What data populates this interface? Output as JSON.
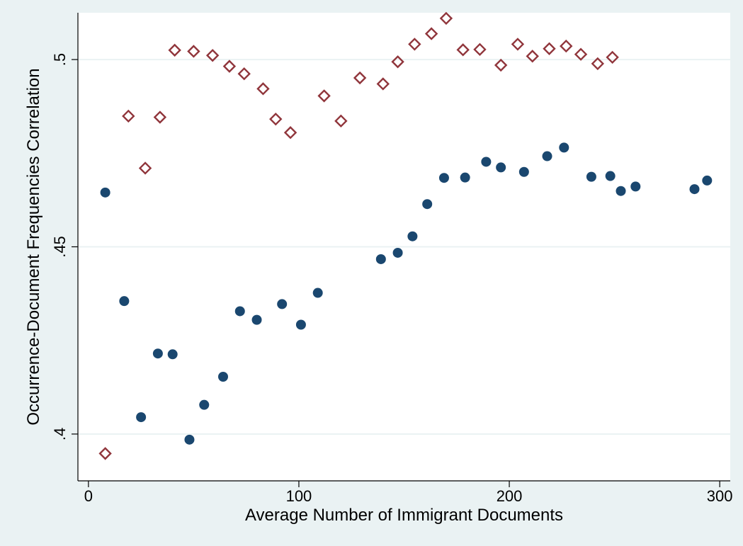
{
  "colors": {
    "outer_background": "#eaf2f3",
    "plot_background": "#ffffff",
    "gridline": "#eaf2f3",
    "series_circle": "#1a476f",
    "series_diamond": "#90353b"
  },
  "chart_data": {
    "type": "scatter",
    "title": "",
    "xlabel": "Average Number of Immigrant Documents",
    "ylabel": "Occurrence-Document Frequencies Correlation",
    "xlim": [
      -5,
      305
    ],
    "ylim": [
      0.3875,
      0.5125
    ],
    "x_ticks": [
      0,
      100,
      200,
      300
    ],
    "x_tick_labels": [
      "0",
      "100",
      "200",
      "300"
    ],
    "y_ticks": [
      0.4,
      0.45,
      0.5
    ],
    "y_tick_labels": [
      ".4",
      ".45",
      ".5"
    ],
    "grid": "horizontal",
    "legend": "none",
    "series": [
      {
        "marker": "filled-circle",
        "points": [
          [
            8,
            0.4645
          ],
          [
            17,
            0.4355
          ],
          [
            25,
            0.4045
          ],
          [
            33,
            0.4215
          ],
          [
            40,
            0.4213
          ],
          [
            48,
            0.3985
          ],
          [
            55,
            0.4078
          ],
          [
            64,
            0.4153
          ],
          [
            72,
            0.4328
          ],
          [
            80,
            0.4305
          ],
          [
            92,
            0.4347
          ],
          [
            101,
            0.4292
          ],
          [
            109,
            0.4377
          ],
          [
            139,
            0.4467
          ],
          [
            147,
            0.4484
          ],
          [
            154,
            0.4528
          ],
          [
            161,
            0.4614
          ],
          [
            169,
            0.4684
          ],
          [
            179,
            0.4685
          ],
          [
            189,
            0.4727
          ],
          [
            196,
            0.4712
          ],
          [
            207,
            0.47
          ],
          [
            218,
            0.4742
          ],
          [
            226,
            0.4765
          ],
          [
            239,
            0.4687
          ],
          [
            248,
            0.4689
          ],
          [
            253,
            0.4649
          ],
          [
            260,
            0.4661
          ],
          [
            288,
            0.4654
          ],
          [
            294,
            0.4677
          ]
        ]
      },
      {
        "marker": "hollow-diamond",
        "points": [
          [
            8,
            0.3948
          ],
          [
            19,
            0.4849
          ],
          [
            27,
            0.471
          ],
          [
            34,
            0.4846
          ],
          [
            41,
            0.5025
          ],
          [
            50,
            0.5022
          ],
          [
            59,
            0.5011
          ],
          [
            67,
            0.4982
          ],
          [
            74,
            0.4962
          ],
          [
            83,
            0.4922
          ],
          [
            89,
            0.4841
          ],
          [
            96,
            0.4805
          ],
          [
            112,
            0.4903
          ],
          [
            120,
            0.4836
          ],
          [
            129,
            0.4951
          ],
          [
            140,
            0.4935
          ],
          [
            147,
            0.4994
          ],
          [
            155,
            0.5041
          ],
          [
            163,
            0.5069
          ],
          [
            170,
            0.511
          ],
          [
            178,
            0.5026
          ],
          [
            186,
            0.5027
          ],
          [
            196,
            0.4985
          ],
          [
            204,
            0.5041
          ],
          [
            211,
            0.5009
          ],
          [
            219,
            0.5029
          ],
          [
            227,
            0.5036
          ],
          [
            234,
            0.5014
          ],
          [
            242,
            0.4989
          ],
          [
            249,
            0.5006
          ]
        ]
      }
    ]
  }
}
